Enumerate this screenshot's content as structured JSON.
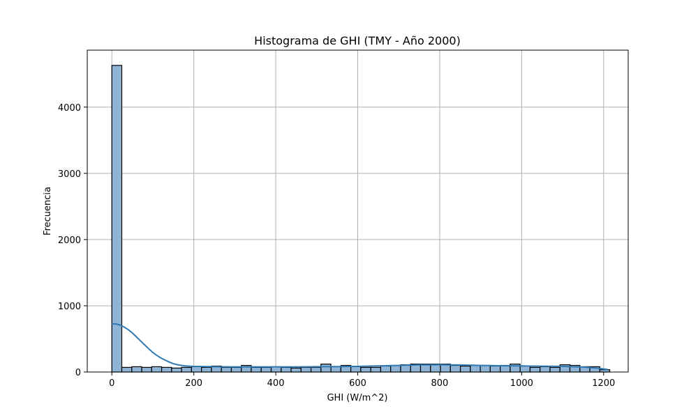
{
  "chart_data": {
    "type": "bar",
    "subtype": "histogram",
    "title": "Histograma de GHI (TMY - Año 2000)",
    "xlabel": "GHI (W/m^2)",
    "ylabel": "Frecuencia",
    "xlim": [
      -60,
      1260
    ],
    "ylim": [
      0,
      4860
    ],
    "xticks": [
      0,
      200,
      400,
      600,
      800,
      1000,
      1200
    ],
    "yticks": [
      0,
      1000,
      2000,
      3000,
      4000
    ],
    "grid": true,
    "bar_color": "#8fb4d6",
    "bar_edge_color": "#000000",
    "kde_color": "#2f7ab5",
    "bins": {
      "start": 0,
      "width": 24.3,
      "counts": [
        4630,
        70,
        80,
        70,
        80,
        70,
        60,
        70,
        80,
        70,
        90,
        70,
        70,
        100,
        70,
        70,
        80,
        70,
        60,
        70,
        70,
        120,
        80,
        100,
        80,
        70,
        70,
        90,
        100,
        110,
        120,
        120,
        120,
        120,
        100,
        90,
        100,
        100,
        90,
        100,
        120,
        90,
        70,
        80,
        70,
        110,
        100,
        80,
        80,
        35
      ]
    },
    "kde": {
      "x": [
        0,
        10,
        20,
        30,
        40,
        50,
        60,
        70,
        80,
        90,
        100,
        110,
        120,
        130,
        140,
        150,
        160,
        170,
        180,
        190,
        200,
        250,
        300,
        350,
        400,
        450,
        500,
        550,
        600,
        650,
        700,
        750,
        800,
        850,
        900,
        950,
        1000,
        1050,
        1100,
        1150,
        1180,
        1210
      ],
      "y": [
        730,
        725,
        710,
        680,
        640,
        590,
        530,
        470,
        410,
        350,
        295,
        250,
        210,
        180,
        150,
        125,
        110,
        100,
        92,
        88,
        85,
        80,
        78,
        78,
        78,
        78,
        80,
        82,
        85,
        92,
        100,
        108,
        110,
        106,
        100,
        95,
        92,
        88,
        85,
        75,
        60,
        40
      ]
    }
  }
}
